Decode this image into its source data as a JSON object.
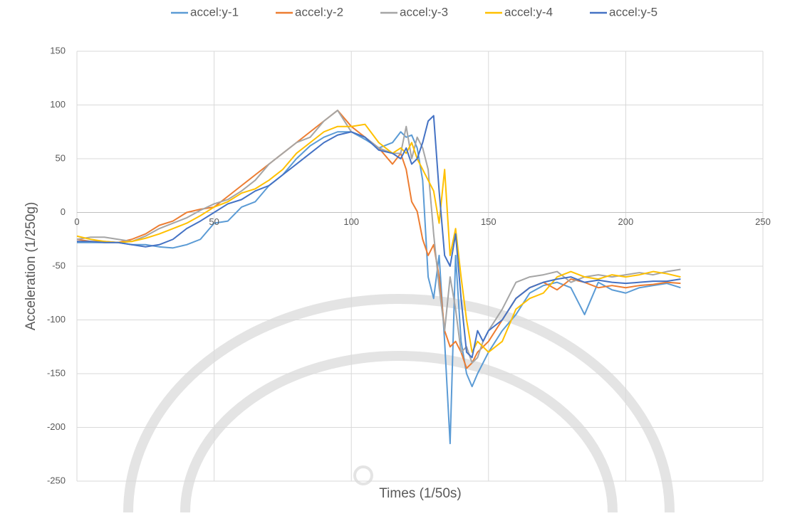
{
  "chart_data": {
    "type": "line",
    "x_label": "Times (1/50s)",
    "y_label": "Acceleration (1/250g)",
    "xlim": [
      0,
      250
    ],
    "xticks": [
      0,
      50,
      100,
      150,
      200,
      250
    ],
    "ylim": [
      -250,
      150
    ],
    "yticks": [
      -250,
      -200,
      -150,
      -100,
      -50,
      0,
      50,
      100,
      150
    ],
    "grid": true,
    "legend": "top",
    "x": [
      0,
      5,
      10,
      15,
      20,
      25,
      30,
      35,
      40,
      45,
      50,
      55,
      60,
      65,
      70,
      75,
      80,
      85,
      90,
      95,
      100,
      105,
      110,
      115,
      118,
      120,
      122,
      124,
      126,
      128,
      130,
      132,
      134,
      136,
      138,
      140,
      142,
      144,
      146,
      148,
      150,
      155,
      160,
      165,
      170,
      175,
      180,
      185,
      190,
      195,
      200,
      205,
      210,
      215,
      220
    ],
    "series": [
      {
        "name": "accel:y-1",
        "color": "#5b9bd5",
        "values": [
          -28,
          -28,
          -28,
          -28,
          -30,
          -30,
          -32,
          -33,
          -30,
          -25,
          -10,
          -8,
          5,
          10,
          25,
          35,
          50,
          62,
          70,
          75,
          75,
          68,
          60,
          65,
          75,
          70,
          72,
          60,
          30,
          -60,
          -80,
          -40,
          -120,
          -215,
          -40,
          -120,
          -150,
          -162,
          -150,
          -140,
          -130,
          -110,
          -95,
          -75,
          -68,
          -65,
          -70,
          -95,
          -65,
          -72,
          -75,
          -70,
          -68,
          -66,
          -70
        ]
      },
      {
        "name": "accel:y-2",
        "color": "#ed7d31",
        "values": [
          -25,
          -27,
          -27,
          -28,
          -25,
          -20,
          -12,
          -8,
          0,
          3,
          5,
          15,
          25,
          35,
          45,
          55,
          65,
          75,
          85,
          95,
          80,
          70,
          60,
          45,
          55,
          40,
          10,
          1,
          -25,
          -40,
          -30,
          -60,
          -110,
          -125,
          -120,
          -130,
          -145,
          -140,
          -130,
          -125,
          -120,
          -100,
          -80,
          -70,
          -65,
          -72,
          -62,
          -65,
          -70,
          -68,
          -70,
          -68,
          -67,
          -65,
          -66
        ]
      },
      {
        "name": "accel:y-3",
        "color": "#a5a5a5",
        "values": [
          -25,
          -23,
          -23,
          -25,
          -27,
          -22,
          -15,
          -10,
          -5,
          2,
          8,
          12,
          20,
          30,
          45,
          55,
          65,
          70,
          85,
          95,
          75,
          70,
          60,
          55,
          55,
          80,
          50,
          70,
          60,
          40,
          -20,
          -70,
          -110,
          -60,
          -90,
          -130,
          -125,
          -140,
          -135,
          -120,
          -110,
          -90,
          -65,
          -60,
          -58,
          -55,
          -65,
          -60,
          -58,
          -60,
          -58,
          -56,
          -58,
          -55,
          -53
        ]
      },
      {
        "name": "accel:y-4",
        "color": "#ffc000",
        "values": [
          -22,
          -25,
          -27,
          -28,
          -27,
          -24,
          -20,
          -15,
          -10,
          -3,
          5,
          10,
          18,
          22,
          30,
          40,
          55,
          65,
          75,
          80,
          80,
          82,
          65,
          55,
          60,
          55,
          65,
          50,
          40,
          30,
          20,
          -10,
          40,
          -40,
          -15,
          -60,
          -100,
          -130,
          -120,
          -125,
          -130,
          -120,
          -90,
          -80,
          -75,
          -60,
          -55,
          -60,
          -62,
          -58,
          -60,
          -58,
          -55,
          -57,
          -60
        ]
      },
      {
        "name": "accel:y-5",
        "color": "#4472c4",
        "values": [
          -27,
          -27,
          -28,
          -28,
          -30,
          -32,
          -30,
          -25,
          -15,
          -8,
          0,
          8,
          12,
          20,
          25,
          35,
          45,
          55,
          65,
          72,
          75,
          70,
          58,
          55,
          50,
          60,
          45,
          50,
          65,
          85,
          90,
          20,
          -40,
          -50,
          -20,
          -80,
          -130,
          -135,
          -110,
          -120,
          -110,
          -100,
          -80,
          -70,
          -65,
          -62,
          -60,
          -65,
          -63,
          -65,
          -66,
          -65,
          -64,
          -64,
          -62
        ]
      }
    ]
  }
}
